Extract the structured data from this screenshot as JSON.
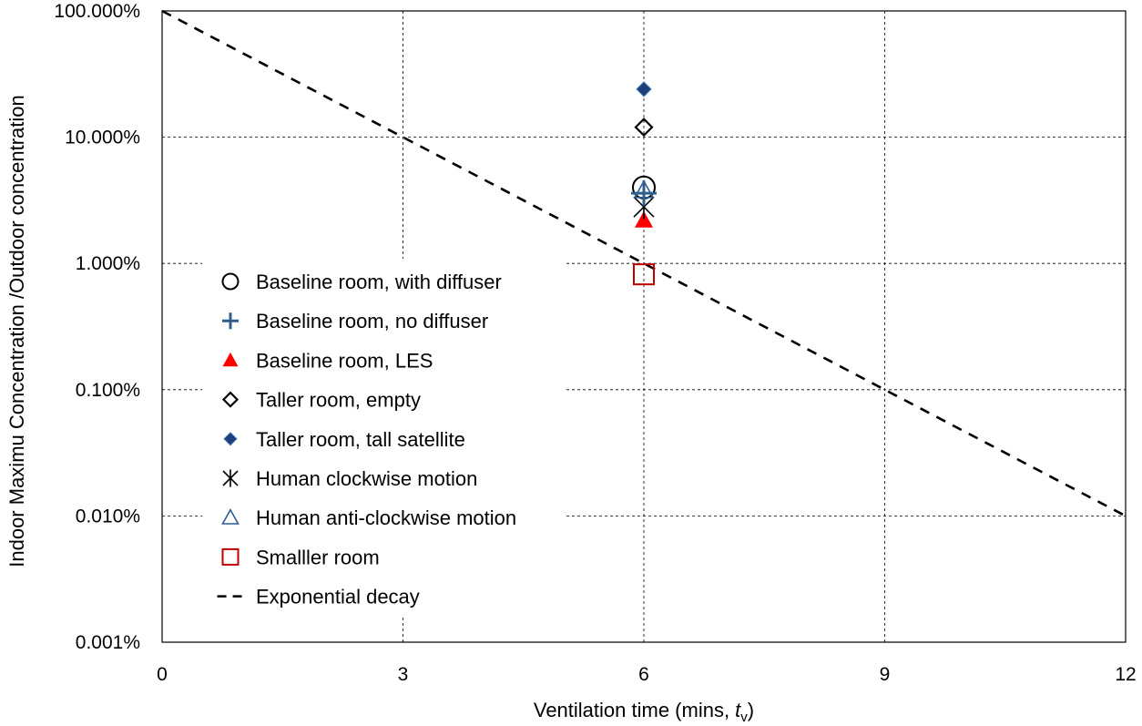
{
  "chart_data": {
    "type": "scatter",
    "title": "",
    "xlabel_prefix": "Ventilation time (mins, ",
    "xlabel_var": "t",
    "xlabel_sub": "v",
    "xlabel_suffix": ")",
    "ylabel": "Indoor Maximu  Concentration /Outdoor concentration",
    "xlim": [
      0,
      12
    ],
    "ylim_log10": [
      -5,
      0
    ],
    "x_ticks": [
      {
        "value": 0,
        "label": "0"
      },
      {
        "value": 3,
        "label": "3"
      },
      {
        "value": 6,
        "label": "6"
      },
      {
        "value": 9,
        "label": "9"
      },
      {
        "value": 12,
        "label": "12"
      }
    ],
    "y_ticks": [
      {
        "value": 1,
        "label": "100.000%"
      },
      {
        "value": 0.1,
        "label": "10.000%"
      },
      {
        "value": 0.01,
        "label": "1.000%"
      },
      {
        "value": 0.001,
        "label": "0.100%"
      },
      {
        "value": 0.0001,
        "label": "0.010%"
      },
      {
        "value": 1e-05,
        "label": "0.001%"
      }
    ],
    "grid": true,
    "legend_position": "left-center",
    "series": [
      {
        "name": "Baseline room,  with diffuser",
        "marker": "open-circle",
        "color": "#000000",
        "points": [
          {
            "x": 6,
            "y": 0.04
          }
        ]
      },
      {
        "name": "Baseline room, no diffuser",
        "marker": "plus",
        "color": "#2f5f8f",
        "points": [
          {
            "x": 6,
            "y": 0.036
          }
        ]
      },
      {
        "name": "Baseline room, LES",
        "marker": "filled-triangle",
        "color": "#ff0000",
        "points": [
          {
            "x": 6,
            "y": 0.022
          }
        ]
      },
      {
        "name": "Taller room, empty",
        "marker": "open-diamond",
        "color": "#000000",
        "points": [
          {
            "x": 6,
            "y": 0.12
          }
        ]
      },
      {
        "name": "Taller room, tall satellite",
        "marker": "filled-diamond",
        "color": "#1f3f7a",
        "points": [
          {
            "x": 6,
            "y": 0.24
          }
        ]
      },
      {
        "name": "Human clockwise motion",
        "marker": "asterisk",
        "color": "#000000",
        "points": [
          {
            "x": 6,
            "y": 0.028
          }
        ]
      },
      {
        "name": "Human anti-clockwise motion",
        "marker": "open-triangle",
        "color": "#2f5f8f",
        "points": [
          {
            "x": 6,
            "y": 0.038
          }
        ]
      },
      {
        "name": "Smalller room",
        "marker": "open-square",
        "color": "#c00000",
        "points": [
          {
            "x": 6,
            "y": 0.0082
          }
        ]
      },
      {
        "name": "Exponential decay",
        "marker": "dashed-line",
        "color": "#000000",
        "points": [
          {
            "x": 0,
            "y": 1
          },
          {
            "x": 12,
            "y": 0.0001
          }
        ]
      }
    ]
  }
}
